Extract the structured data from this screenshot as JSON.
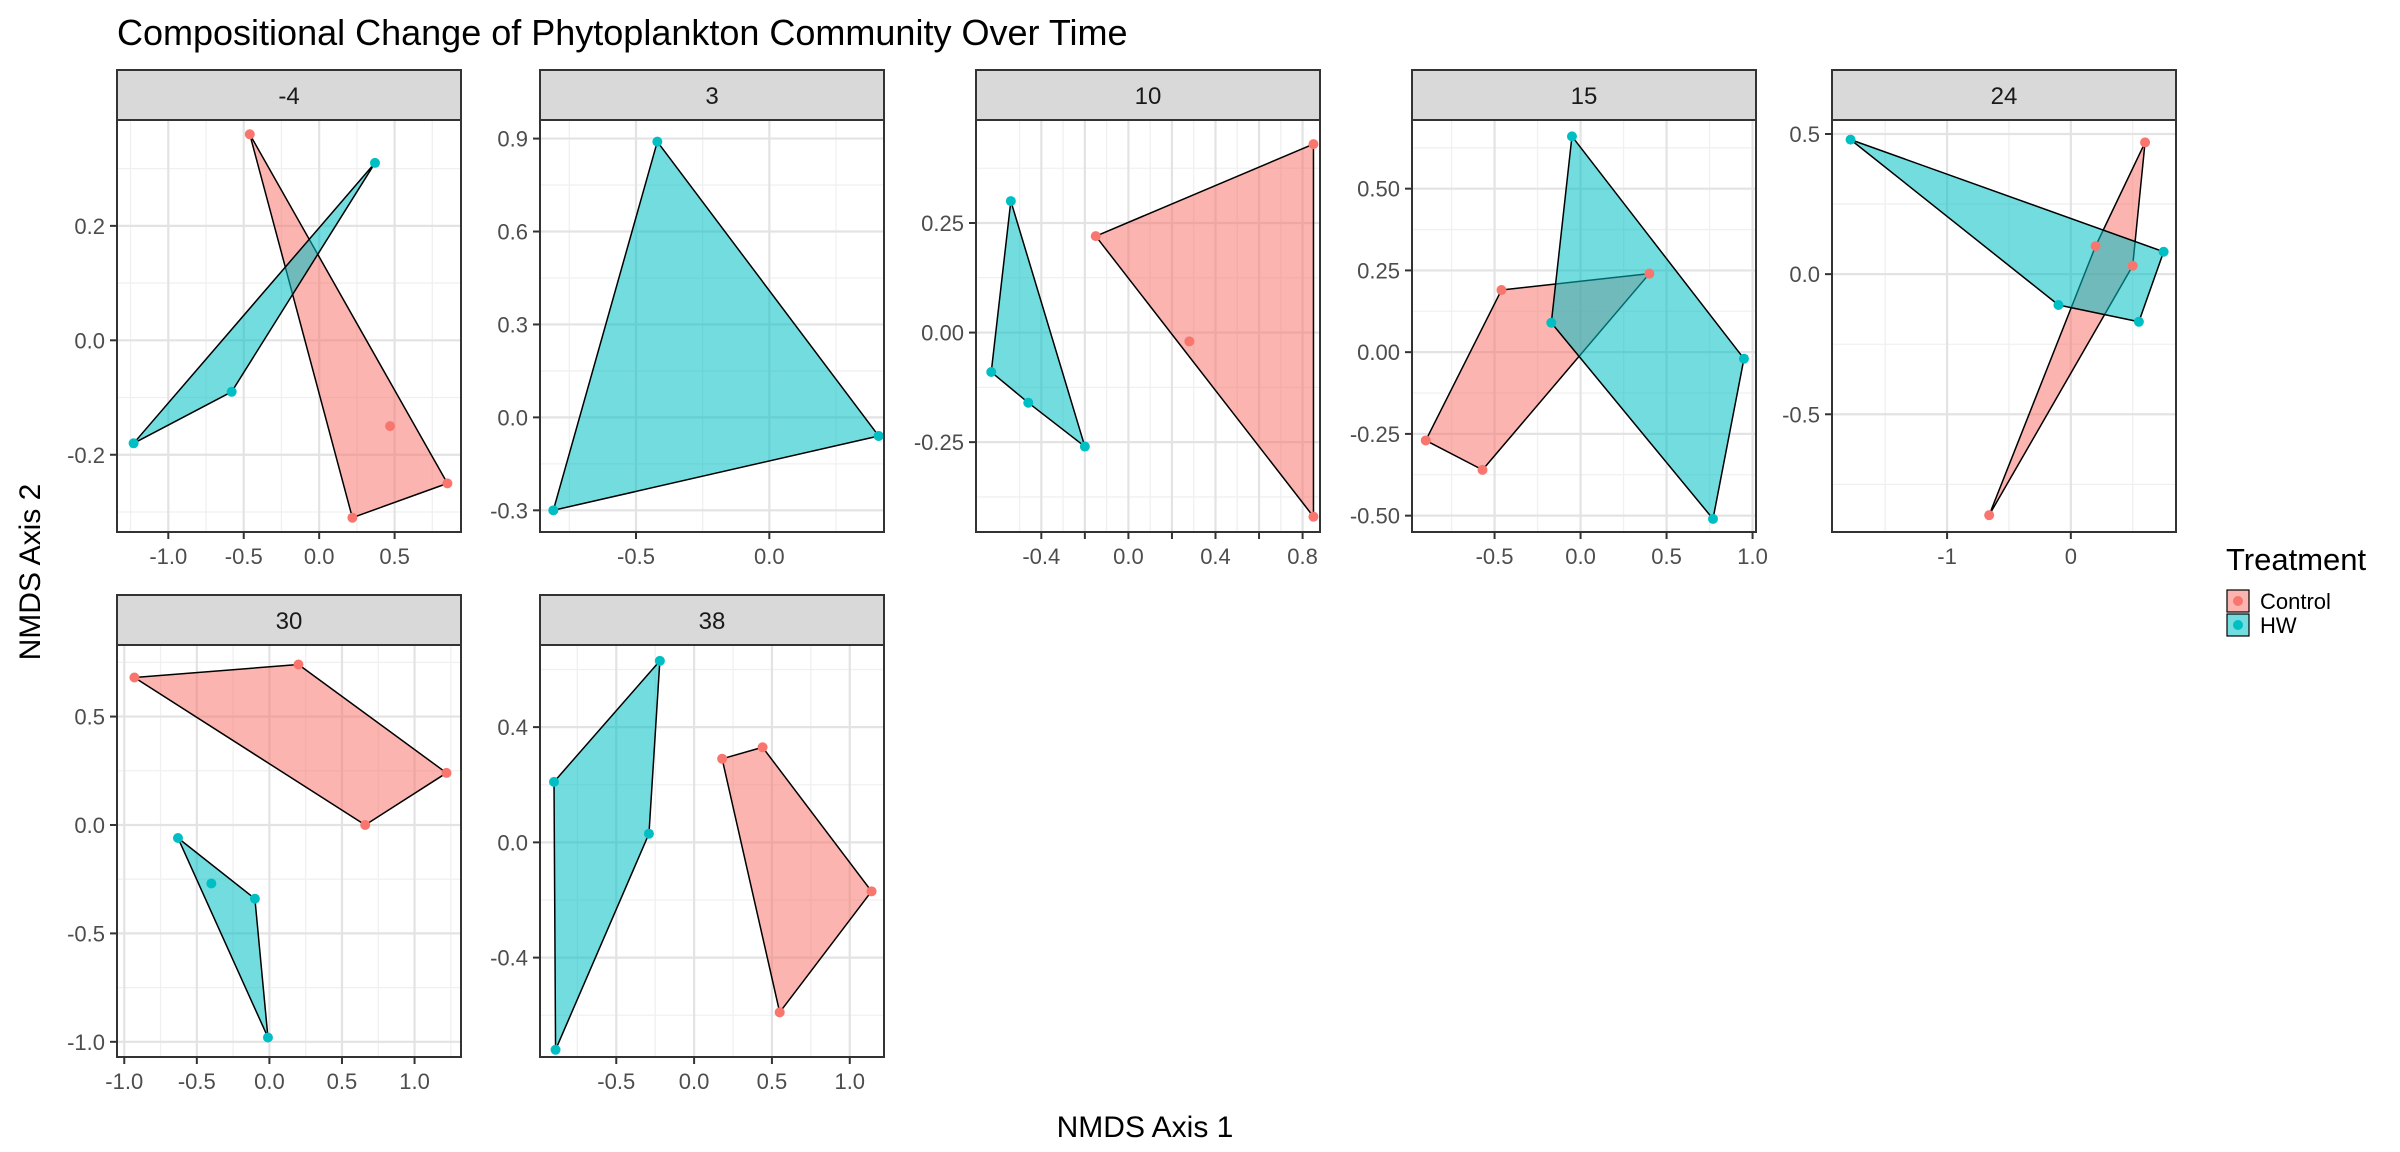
{
  "chart_data": {
    "type": "scatter",
    "title": "Compositional Change of Phytoplankton Community Over Time",
    "xlabel": "NMDS Axis 1",
    "ylabel": "NMDS Axis 2",
    "grid": true,
    "legend": {
      "title": "Treatment",
      "placement": "right",
      "entries": [
        {
          "name": "Control",
          "color": "#F8766D"
        },
        {
          "name": "HW",
          "color": "#00BFC4"
        }
      ]
    },
    "colors": {
      "Control": "#F8766D",
      "HW": "#00BFC4"
    },
    "panels": [
      {
        "label": "-4",
        "xlim": [
          -1.34,
          0.94
        ],
        "ylim": [
          -0.335,
          0.385
        ],
        "xticks": [
          -1.0,
          -0.5,
          0.0,
          0.5
        ],
        "xtick_labels": [
          "-1.0",
          "-0.5",
          "0.0",
          "0.5"
        ],
        "yticks": [
          -0.2,
          0.0,
          0.2
        ],
        "ytick_labels": [
          "-0.2",
          "0.0",
          "0.2"
        ],
        "series": [
          {
            "name": "Control",
            "points": [
              [
                -0.46,
                0.36
              ],
              [
                0.47,
                -0.15
              ],
              [
                0.85,
                -0.25
              ],
              [
                0.22,
                -0.31
              ]
            ]
          },
          {
            "name": "HW",
            "points": [
              [
                0.37,
                0.31
              ],
              [
                -0.58,
                -0.09
              ],
              [
                -1.23,
                -0.18
              ]
            ]
          }
        ]
      },
      {
        "label": "3",
        "xlim": [
          -0.86,
          0.43
        ],
        "ylim": [
          -0.37,
          0.96
        ],
        "xticks": [
          -0.5,
          0.0
        ],
        "xtick_labels": [
          "-0.5",
          "0.0"
        ],
        "yticks": [
          -0.3,
          0.0,
          0.3,
          0.6,
          0.9
        ],
        "ytick_labels": [
          "-0.3",
          "0.0",
          "0.3",
          "0.6",
          "0.9"
        ],
        "series": [
          {
            "name": "Control",
            "points": [
              [
                0.41,
                -0.06
              ]
            ]
          },
          {
            "name": "HW",
            "points": [
              [
                -0.42,
                0.89
              ],
              [
                0.41,
                -0.06
              ],
              [
                -0.81,
                -0.3
              ]
            ]
          }
        ]
      },
      {
        "label": "10",
        "xlim": [
          -0.7,
          0.88
        ],
        "ylim": [
          -0.455,
          0.485
        ],
        "xticks": [
          -0.4,
          -0.2,
          0.0,
          0.2,
          0.4,
          0.6,
          0.8
        ],
        "xtick_labels": [
          "-0.4",
          "",
          "0.0",
          "",
          "0.4",
          "",
          "0.8"
        ],
        "yticks": [
          -0.25,
          0.0,
          0.25
        ],
        "ytick_labels": [
          "-0.25",
          "0.00",
          "0.25"
        ],
        "series": [
          {
            "name": "Control",
            "points": [
              [
                0.85,
                0.43
              ],
              [
                -0.15,
                0.22
              ],
              [
                0.28,
                -0.02
              ],
              [
                0.85,
                -0.42
              ]
            ]
          },
          {
            "name": "HW",
            "points": [
              [
                -0.54,
                0.3
              ],
              [
                -0.63,
                -0.09
              ],
              [
                -0.46,
                -0.16
              ],
              [
                -0.2,
                -0.26
              ]
            ]
          }
        ]
      },
      {
        "label": "15",
        "xlim": [
          -0.98,
          1.02
        ],
        "ylim": [
          -0.55,
          0.71
        ],
        "xticks": [
          -0.5,
          0.0,
          0.5,
          1.0
        ],
        "xtick_labels": [
          "-0.5",
          "0.0",
          "0.5",
          "1.0"
        ],
        "yticks": [
          -0.5,
          -0.25,
          0.0,
          0.25,
          0.5
        ],
        "ytick_labels": [
          "-0.50",
          "-0.25",
          "0.00",
          "0.25",
          "0.50"
        ],
        "series": [
          {
            "name": "Control",
            "points": [
              [
                -0.46,
                0.19
              ],
              [
                0.4,
                0.24
              ],
              [
                -0.9,
                -0.27
              ],
              [
                -0.57,
                -0.36
              ]
            ]
          },
          {
            "name": "HW",
            "points": [
              [
                -0.05,
                0.66
              ],
              [
                0.95,
                -0.02
              ],
              [
                -0.17,
                0.09
              ],
              [
                0.77,
                -0.51
              ]
            ]
          }
        ]
      },
      {
        "label": "24",
        "xlim": [
          -1.93,
          0.85
        ],
        "ylim": [
          -0.92,
          0.55
        ],
        "xticks": [
          -1,
          0
        ],
        "xtick_labels": [
          "-1",
          "0"
        ],
        "yticks": [
          -0.5,
          0.0,
          0.5
        ],
        "ytick_labels": [
          "-0.5",
          "0.0",
          "0.5"
        ],
        "series": [
          {
            "name": "Control",
            "points": [
              [
                0.6,
                0.47
              ],
              [
                0.2,
                0.1
              ],
              [
                0.5,
                0.03
              ],
              [
                -0.66,
                -0.86
              ]
            ]
          },
          {
            "name": "HW",
            "points": [
              [
                -1.78,
                0.48
              ],
              [
                -0.1,
                -0.11
              ],
              [
                0.55,
                -0.17
              ],
              [
                0.75,
                0.08
              ]
            ]
          }
        ]
      },
      {
        "label": "30",
        "xlim": [
          -1.05,
          1.32
        ],
        "ylim": [
          -1.07,
          0.83
        ],
        "xticks": [
          -1.0,
          -0.5,
          0.0,
          0.5,
          1.0
        ],
        "xtick_labels": [
          "-1.0",
          "-0.5",
          "0.0",
          "0.5",
          "1.0"
        ],
        "yticks": [
          -1.0,
          -0.5,
          0.0,
          0.5
        ],
        "ytick_labels": [
          "-1.0",
          "-0.5",
          "0.0",
          "0.5"
        ],
        "series": [
          {
            "name": "Control",
            "points": [
              [
                -0.93,
                0.68
              ],
              [
                0.2,
                0.74
              ],
              [
                1.22,
                0.24
              ],
              [
                0.66,
                0.0
              ]
            ]
          },
          {
            "name": "HW",
            "points": [
              [
                -0.63,
                -0.06
              ],
              [
                -0.4,
                -0.27
              ],
              [
                -0.1,
                -0.34
              ],
              [
                -0.01,
                -0.98
              ]
            ]
          }
        ]
      },
      {
        "label": "38",
        "xlim": [
          -0.99,
          1.22
        ],
        "ylim": [
          -0.745,
          0.685
        ],
        "xticks": [
          -0.5,
          0.0,
          0.5,
          1.0
        ],
        "xtick_labels": [
          "-0.5",
          "0.0",
          "0.5",
          "1.0"
        ],
        "yticks": [
          -0.4,
          0.0,
          0.4
        ],
        "ytick_labels": [
          "-0.4",
          "0.0",
          "0.4"
        ],
        "series": [
          {
            "name": "Control",
            "points": [
              [
                0.18,
                0.29
              ],
              [
                0.44,
                0.33
              ],
              [
                1.14,
                -0.17
              ],
              [
                0.55,
                -0.59
              ]
            ]
          },
          {
            "name": "HW",
            "points": [
              [
                -0.22,
                0.63
              ],
              [
                -0.9,
                0.21
              ],
              [
                -0.29,
                0.03
              ],
              [
                -0.89,
                -0.72
              ]
            ]
          }
        ]
      }
    ]
  }
}
